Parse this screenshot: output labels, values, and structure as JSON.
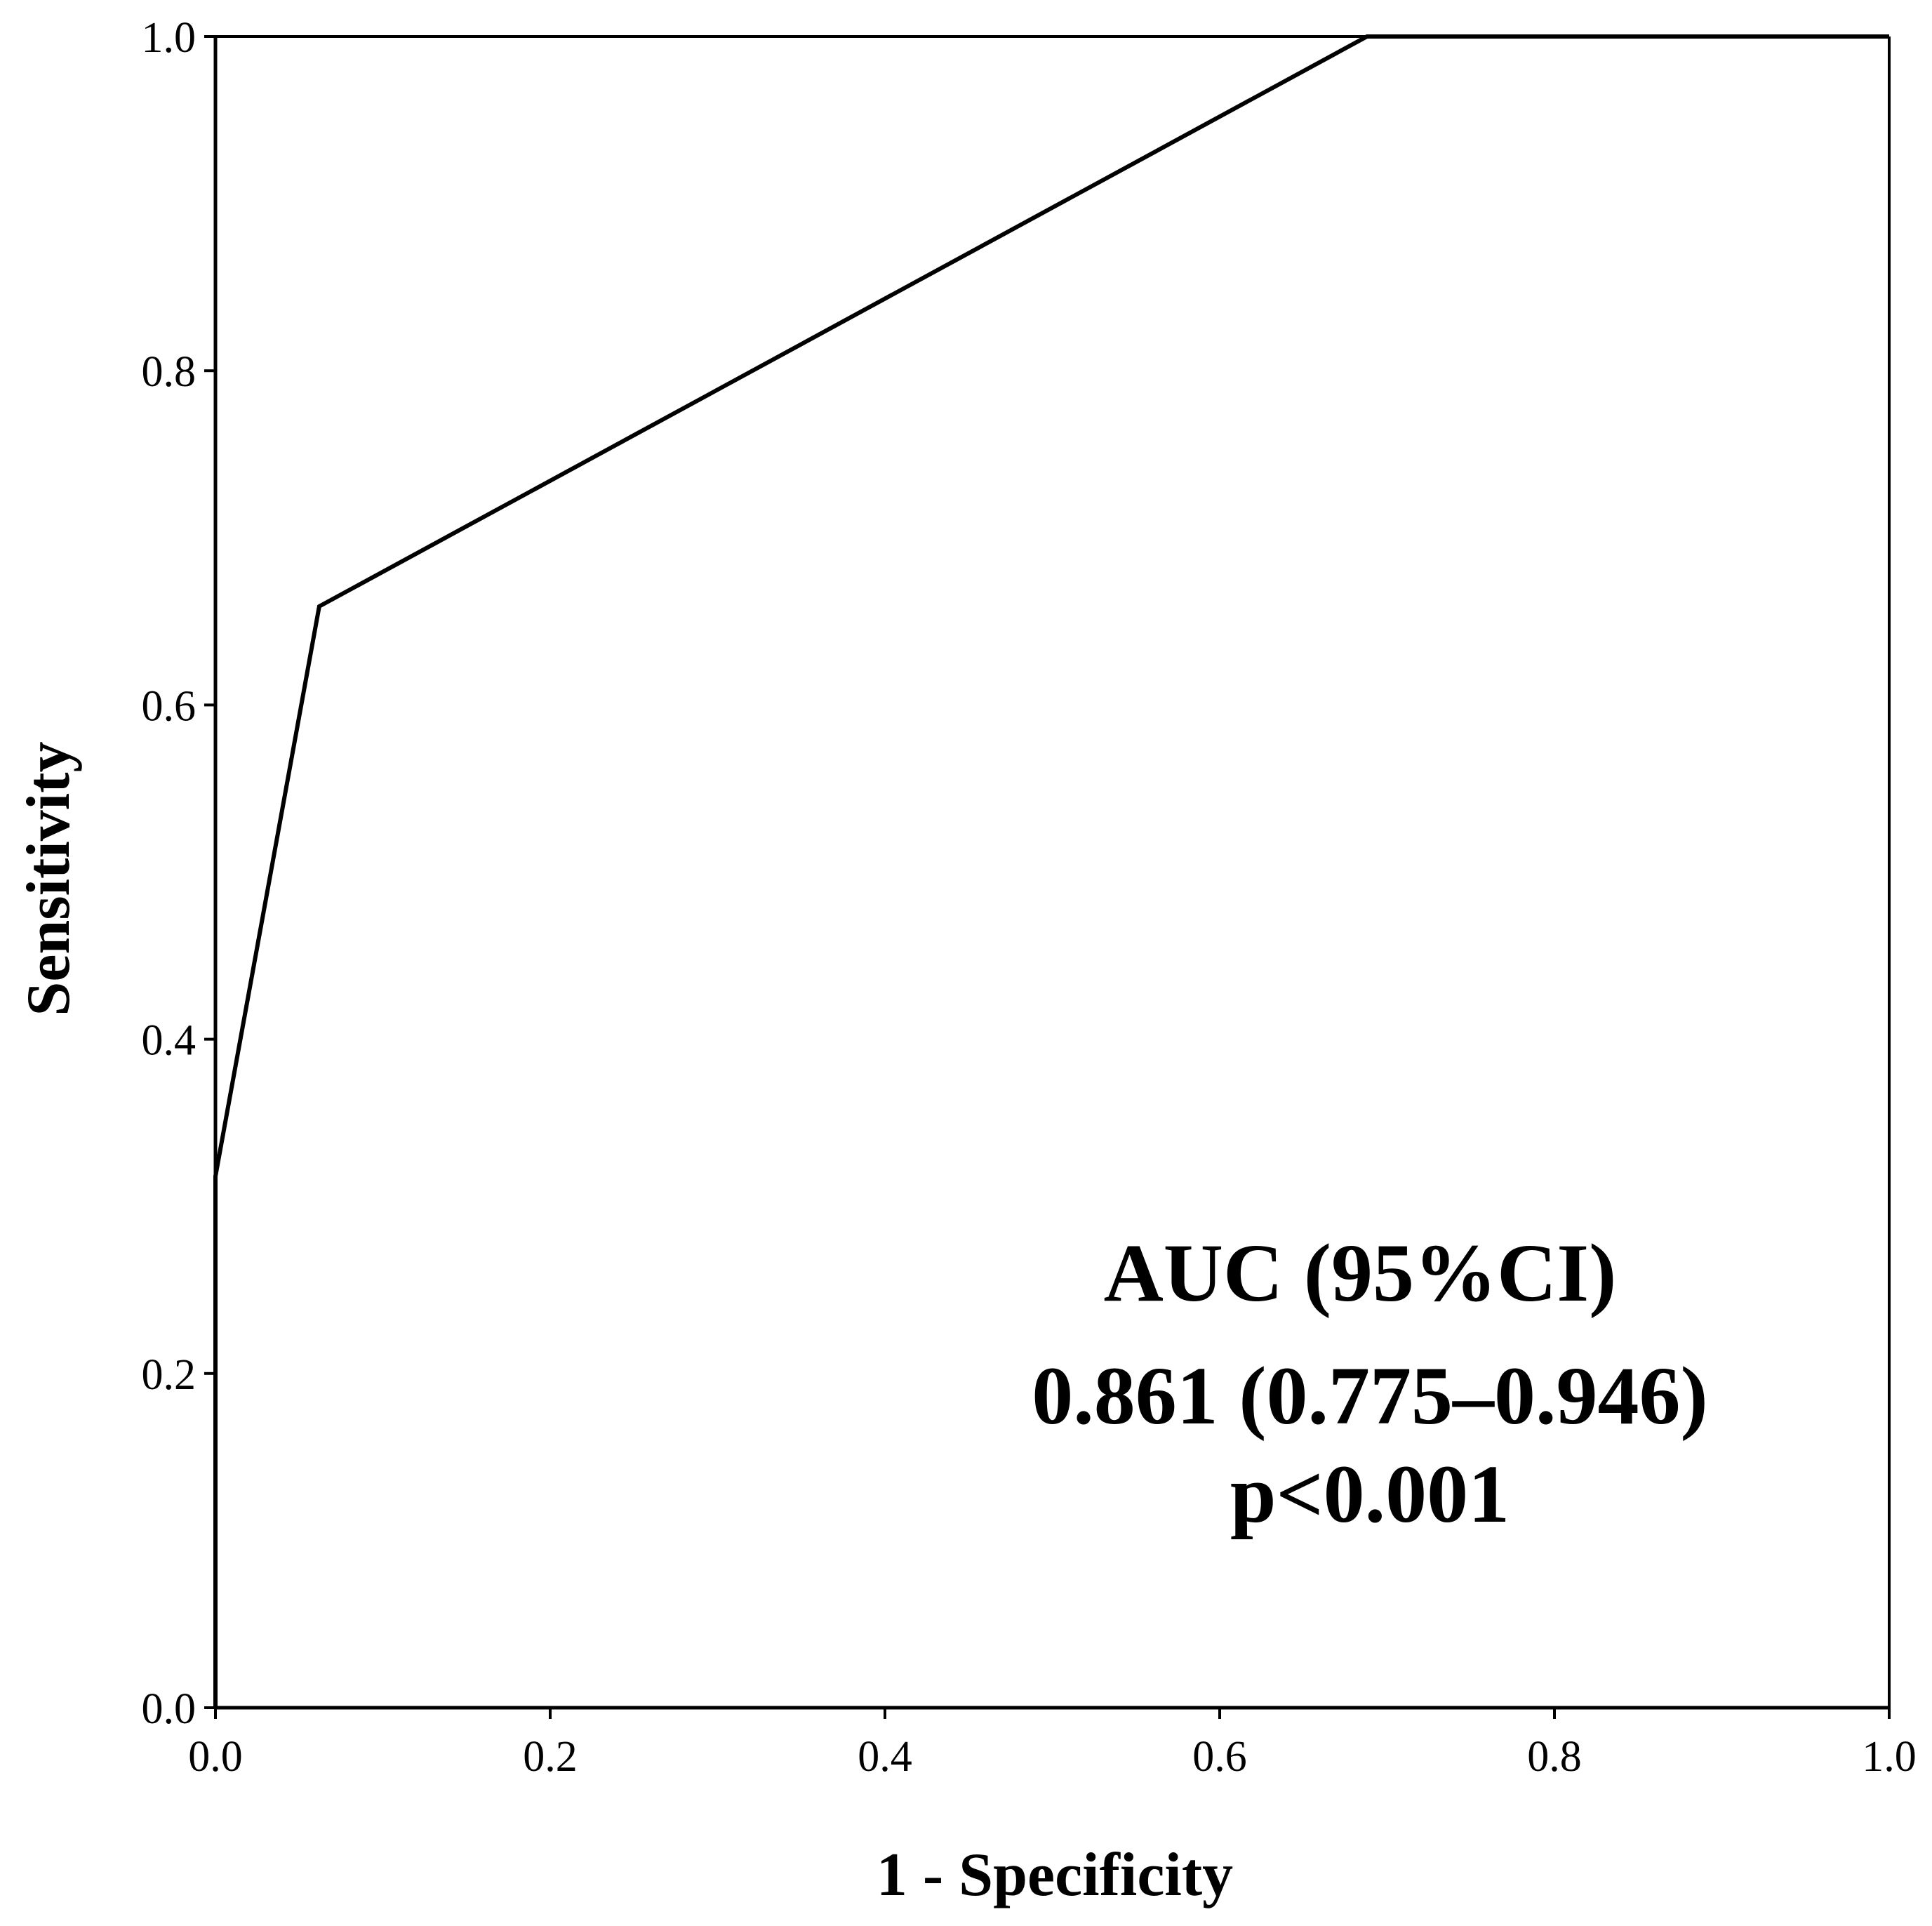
{
  "chart_data": {
    "type": "line",
    "title": "",
    "xlabel": "1 - Specificity",
    "ylabel": "Sensitivity",
    "xlim": [
      0,
      1
    ],
    "ylim": [
      0,
      1
    ],
    "xticks": [
      "0.0",
      "0.2",
      "0.4",
      "0.6",
      "0.8",
      "1.0"
    ],
    "yticks": [
      "0.0",
      "0.2",
      "0.4",
      "0.6",
      "0.8",
      "1.0"
    ],
    "grid": false,
    "legend": "none",
    "series": [
      {
        "x": [
          0.0,
          0.0,
          0.062,
          0.688,
          1.0
        ],
        "y": [
          0.0,
          0.318,
          0.659,
          1.0,
          1.0
        ]
      }
    ],
    "annotations": [
      "AUC (95%CI)",
      "0.861 (0.775–0.946)",
      "p<0.001"
    ],
    "colors": {
      "line": "#000000",
      "axis": "#000000",
      "background": "#ffffff"
    }
  }
}
